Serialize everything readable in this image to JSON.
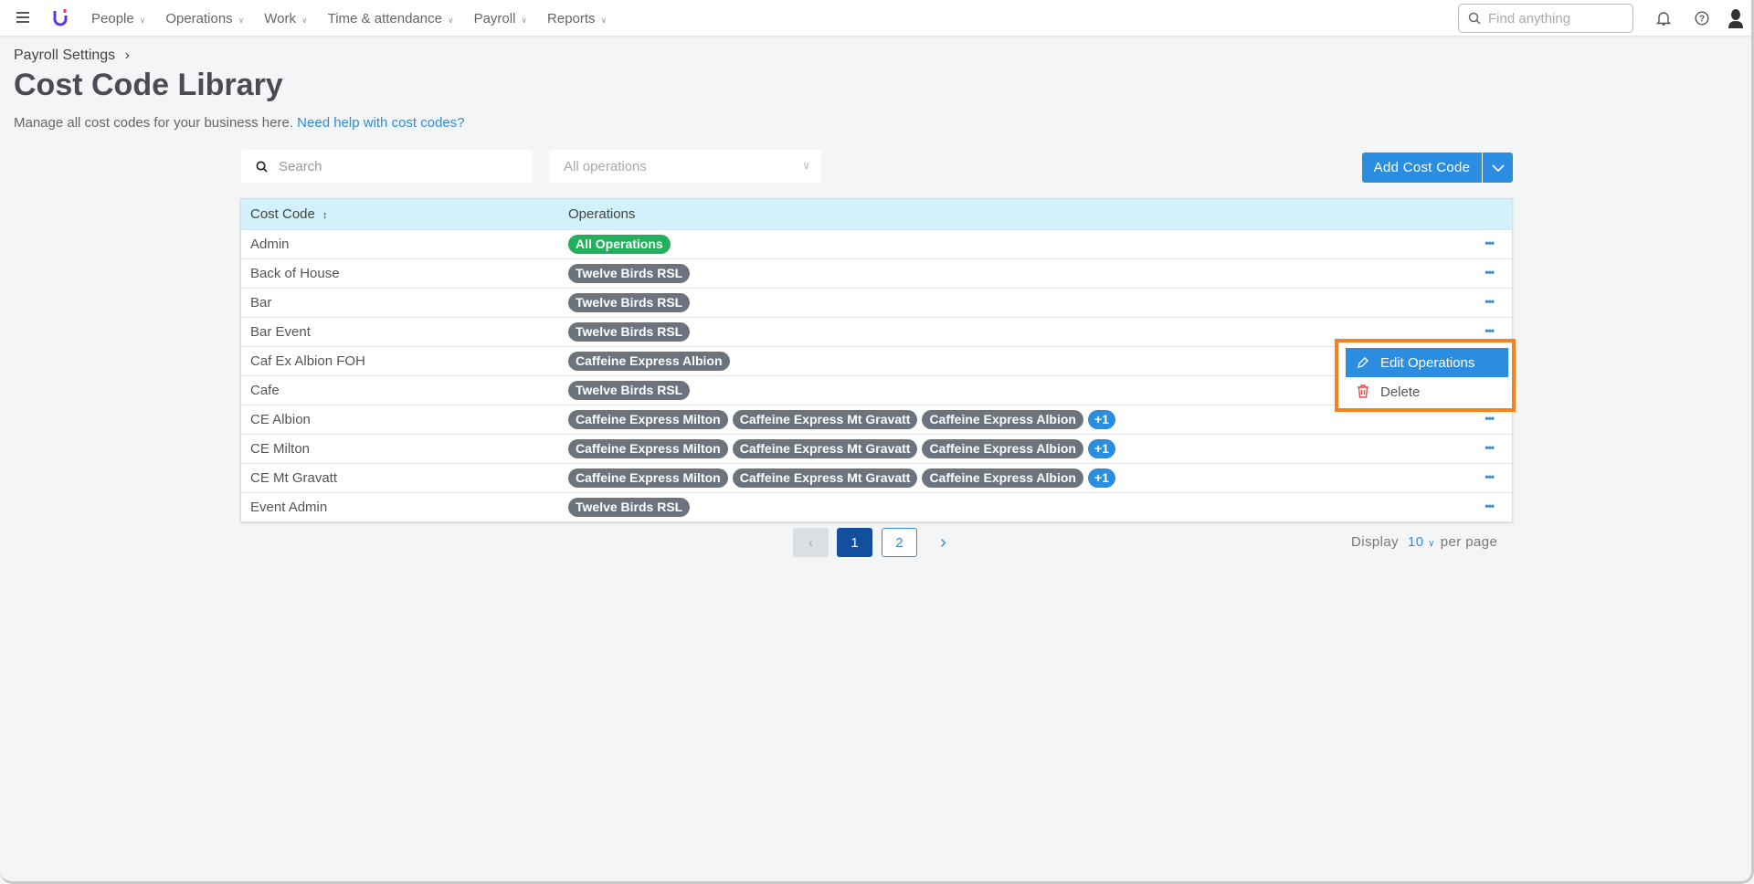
{
  "nav": {
    "menu": [
      "People",
      "Operations",
      "Work",
      "Time & attendance",
      "Payroll",
      "Reports"
    ],
    "search_placeholder": "Find anything",
    "icons": [
      "hamburger-icon",
      "logo",
      "bell-icon",
      "help-icon",
      "avatar-icon"
    ]
  },
  "page": {
    "breadcrumb": "Payroll Settings",
    "title": "Cost Code Library",
    "description": "Manage all cost codes for your business here.",
    "help_link": "Need help with cost codes?"
  },
  "toolbar": {
    "search_placeholder": "Search",
    "operations_placeholder": "All operations",
    "add_label": "Add Cost Code"
  },
  "table": {
    "headers": [
      "Cost Code",
      "Operations"
    ],
    "rows": [
      {
        "code": "Admin",
        "ops": [
          "All Operations"
        ],
        "all": true
      },
      {
        "code": "Back of House",
        "ops": [
          "Twelve Birds RSL"
        ]
      },
      {
        "code": "Bar",
        "ops": [
          "Twelve Birds RSL"
        ]
      },
      {
        "code": "Bar Event",
        "ops": [
          "Twelve Birds RSL"
        ]
      },
      {
        "code": "Caf Ex Albion FOH",
        "ops": [
          "Caffeine Express Albion"
        ]
      },
      {
        "code": "Cafe",
        "ops": [
          "Twelve Birds RSL"
        ]
      },
      {
        "code": "CE Albion",
        "ops": [
          "Caffeine Express Milton",
          "Caffeine Express Mt Gravatt",
          "Caffeine Express Albion"
        ],
        "more": "+1"
      },
      {
        "code": "CE Milton",
        "ops": [
          "Caffeine Express Milton",
          "Caffeine Express Mt Gravatt",
          "Caffeine Express Albion"
        ],
        "more": "+1"
      },
      {
        "code": "CE Mt Gravatt",
        "ops": [
          "Caffeine Express Milton",
          "Caffeine Express Mt Gravatt",
          "Caffeine Express Albion"
        ],
        "more": "+1"
      },
      {
        "code": "Event Admin",
        "ops": [
          "Twelve Birds RSL"
        ]
      }
    ]
  },
  "context_menu": {
    "edit": "Edit Operations",
    "delete": "Delete",
    "open_row": 3
  },
  "pagination": {
    "pages": [
      "1",
      "2"
    ],
    "current": "1",
    "display_label": "Display",
    "per_page": "10",
    "per_page_suffix": "per page"
  },
  "colors": {
    "accent": "#2b8de0",
    "all_badge": "#22b05a",
    "badge": "#6b737c",
    "header": "#d3f1fb",
    "highlight": "#f5821f",
    "current_page": "#12509e"
  }
}
